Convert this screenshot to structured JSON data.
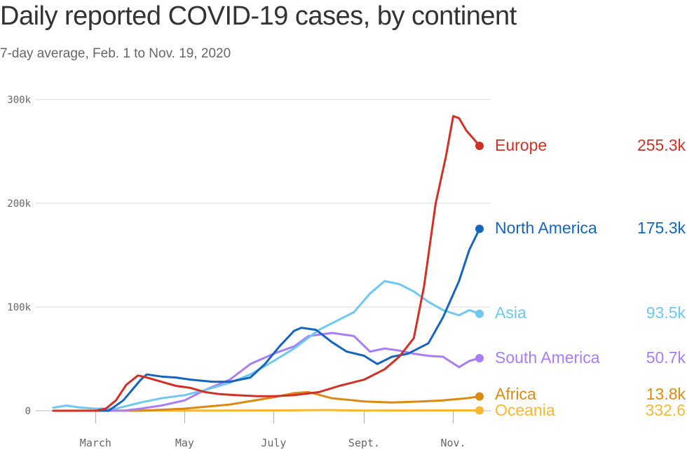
{
  "title": "Daily reported COVID-19 cases, by continent",
  "subtitle": "7-day average, Feb. 1 to Nov. 19, 2020",
  "chart_data": {
    "type": "line",
    "title": "Daily reported COVID-19 cases, by continent",
    "subtitle": "7-day average, Feb. 1 to Nov. 19, 2020",
    "xlabel": "",
    "ylabel": "",
    "xlim": [
      "2020-02-01",
      "2020-11-19"
    ],
    "ylim": [
      0,
      300000
    ],
    "grid": true,
    "legend": "right, end-of-line labels",
    "x_ticks": [
      {
        "date": "2020-03-01",
        "label": "March"
      },
      {
        "date": "2020-05-01",
        "label": "May"
      },
      {
        "date": "2020-07-01",
        "label": "July"
      },
      {
        "date": "2020-09-01",
        "label": "Sept."
      },
      {
        "date": "2020-11-01",
        "label": "Nov."
      }
    ],
    "y_ticks": [
      {
        "value": 0,
        "label": "0"
      },
      {
        "value": 100000,
        "label": "100k"
      },
      {
        "value": 200000,
        "label": "200k"
      },
      {
        "value": 300000,
        "label": "300k"
      }
    ],
    "series": [
      {
        "name": "Europe",
        "last_label": "255.3k",
        "last_value": 255300,
        "color": "#d13025",
        "points": [
          [
            "2020-02-01",
            0
          ],
          [
            "2020-03-01",
            0
          ],
          [
            "2020-03-08",
            2000
          ],
          [
            "2020-03-15",
            10000
          ],
          [
            "2020-03-22",
            25000
          ],
          [
            "2020-03-30",
            34000
          ],
          [
            "2020-04-05",
            32000
          ],
          [
            "2020-04-15",
            28000
          ],
          [
            "2020-04-25",
            24000
          ],
          [
            "2020-05-05",
            22000
          ],
          [
            "2020-05-15",
            18000
          ],
          [
            "2020-05-25",
            16000
          ],
          [
            "2020-06-05",
            15000
          ],
          [
            "2020-06-20",
            14000
          ],
          [
            "2020-07-01",
            14000
          ],
          [
            "2020-07-15",
            15000
          ],
          [
            "2020-08-01",
            18000
          ],
          [
            "2020-08-15",
            24000
          ],
          [
            "2020-09-01",
            30000
          ],
          [
            "2020-09-15",
            40000
          ],
          [
            "2020-09-25",
            52000
          ],
          [
            "2020-10-05",
            70000
          ],
          [
            "2020-10-12",
            120000
          ],
          [
            "2020-10-20",
            200000
          ],
          [
            "2020-10-27",
            245000
          ],
          [
            "2020-11-01",
            284000
          ],
          [
            "2020-11-05",
            282000
          ],
          [
            "2020-11-10",
            270000
          ],
          [
            "2020-11-15",
            262000
          ],
          [
            "2020-11-19",
            255300
          ]
        ]
      },
      {
        "name": "North America",
        "last_label": "175.3k",
        "last_value": 175300,
        "color": "#1565c0",
        "points": [
          [
            "2020-02-01",
            0
          ],
          [
            "2020-03-10",
            0
          ],
          [
            "2020-03-20",
            10000
          ],
          [
            "2020-04-01",
            30000
          ],
          [
            "2020-04-05",
            35000
          ],
          [
            "2020-04-15",
            33000
          ],
          [
            "2020-04-25",
            32000
          ],
          [
            "2020-05-05",
            30000
          ],
          [
            "2020-05-20",
            28000
          ],
          [
            "2020-06-01",
            28000
          ],
          [
            "2020-06-15",
            32000
          ],
          [
            "2020-06-25",
            45000
          ],
          [
            "2020-07-05",
            62000
          ],
          [
            "2020-07-15",
            77000
          ],
          [
            "2020-07-20",
            80000
          ],
          [
            "2020-07-30",
            78000
          ],
          [
            "2020-08-10",
            66000
          ],
          [
            "2020-08-20",
            57000
          ],
          [
            "2020-09-01",
            53000
          ],
          [
            "2020-09-10",
            45000
          ],
          [
            "2020-09-20",
            52000
          ],
          [
            "2020-10-01",
            55000
          ],
          [
            "2020-10-15",
            65000
          ],
          [
            "2020-10-25",
            90000
          ],
          [
            "2020-11-05",
            125000
          ],
          [
            "2020-11-12",
            155000
          ],
          [
            "2020-11-19",
            175300
          ]
        ]
      },
      {
        "name": "Asia",
        "last_label": "93.5k",
        "last_value": 93500,
        "color": "#6fc8f2",
        "points": [
          [
            "2020-02-01",
            3000
          ],
          [
            "2020-02-10",
            5000
          ],
          [
            "2020-02-20",
            3000
          ],
          [
            "2020-03-01",
            2000
          ],
          [
            "2020-03-15",
            2000
          ],
          [
            "2020-04-01",
            8000
          ],
          [
            "2020-04-15",
            12000
          ],
          [
            "2020-05-01",
            15000
          ],
          [
            "2020-05-15",
            20000
          ],
          [
            "2020-06-01",
            27000
          ],
          [
            "2020-06-15",
            35000
          ],
          [
            "2020-07-01",
            48000
          ],
          [
            "2020-07-15",
            60000
          ],
          [
            "2020-08-01",
            78000
          ],
          [
            "2020-08-15",
            88000
          ],
          [
            "2020-08-25",
            95000
          ],
          [
            "2020-09-05",
            113000
          ],
          [
            "2020-09-15",
            125000
          ],
          [
            "2020-09-25",
            122000
          ],
          [
            "2020-10-05",
            115000
          ],
          [
            "2020-10-15",
            105000
          ],
          [
            "2020-10-25",
            97000
          ],
          [
            "2020-11-05",
            92000
          ],
          [
            "2020-11-12",
            97000
          ],
          [
            "2020-11-19",
            93500
          ]
        ]
      },
      {
        "name": "South America",
        "last_label": "50.7k",
        "last_value": 50700,
        "color": "#a77ef5",
        "points": [
          [
            "2020-02-01",
            0
          ],
          [
            "2020-03-20",
            0
          ],
          [
            "2020-04-01",
            2000
          ],
          [
            "2020-04-15",
            5000
          ],
          [
            "2020-05-01",
            10000
          ],
          [
            "2020-05-15",
            20000
          ],
          [
            "2020-06-01",
            30000
          ],
          [
            "2020-06-15",
            45000
          ],
          [
            "2020-07-01",
            55000
          ],
          [
            "2020-07-15",
            62000
          ],
          [
            "2020-07-25",
            72000
          ],
          [
            "2020-08-10",
            75000
          ],
          [
            "2020-08-25",
            72000
          ],
          [
            "2020-09-05",
            57000
          ],
          [
            "2020-09-15",
            60000
          ],
          [
            "2020-09-25",
            58000
          ],
          [
            "2020-10-05",
            55000
          ],
          [
            "2020-10-15",
            53000
          ],
          [
            "2020-10-25",
            52000
          ],
          [
            "2020-11-05",
            42000
          ],
          [
            "2020-11-12",
            48000
          ],
          [
            "2020-11-19",
            50700
          ]
        ]
      },
      {
        "name": "Africa",
        "last_label": "13.8k",
        "last_value": 13800,
        "color": "#db8b12",
        "points": [
          [
            "2020-02-01",
            0
          ],
          [
            "2020-04-01",
            0
          ],
          [
            "2020-05-01",
            2000
          ],
          [
            "2020-06-01",
            6000
          ],
          [
            "2020-07-01",
            13000
          ],
          [
            "2020-07-15",
            17000
          ],
          [
            "2020-07-25",
            18000
          ],
          [
            "2020-08-10",
            12000
          ],
          [
            "2020-09-01",
            9000
          ],
          [
            "2020-09-20",
            8000
          ],
          [
            "2020-10-10",
            9000
          ],
          [
            "2020-10-25",
            10000
          ],
          [
            "2020-11-10",
            12000
          ],
          [
            "2020-11-19",
            13800
          ]
        ]
      },
      {
        "name": "Oceania",
        "last_label": "332.6",
        "last_value": 332.6,
        "color": "#f7b731",
        "points": [
          [
            "2020-02-01",
            0
          ],
          [
            "2020-03-15",
            300
          ],
          [
            "2020-04-01",
            400
          ],
          [
            "2020-05-01",
            100
          ],
          [
            "2020-07-15",
            400
          ],
          [
            "2020-08-05",
            700
          ],
          [
            "2020-09-01",
            200
          ],
          [
            "2020-11-19",
            332.6
          ]
        ]
      }
    ]
  }
}
